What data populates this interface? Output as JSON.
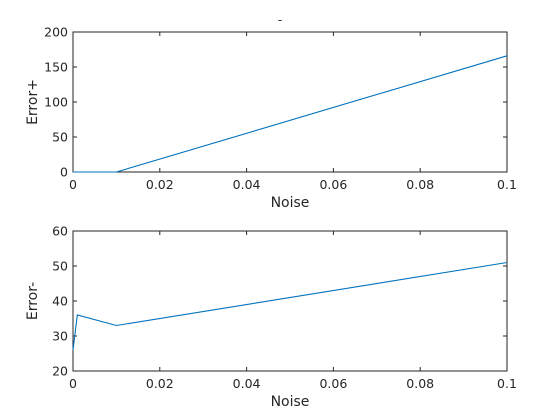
{
  "figure": {
    "title_fragment": "-"
  },
  "chart_data": [
    {
      "type": "line",
      "xlabel": "Noise",
      "ylabel": "Error+",
      "xlim": [
        0,
        0.1
      ],
      "ylim": [
        0,
        200
      ],
      "xticks": [
        0,
        0.02,
        0.04,
        0.06,
        0.08,
        0.1
      ],
      "xtick_labels": [
        "0",
        "0.02",
        "0.04",
        "0.06",
        "0.08",
        "0.1"
      ],
      "yticks": [
        0,
        50,
        100,
        150,
        200
      ],
      "ytick_labels": [
        "0",
        "50",
        "100",
        "150",
        "200"
      ],
      "grid": false,
      "color": "#0072bd",
      "series": [
        {
          "x": [
            0,
            0.001,
            0.01,
            0.1
          ],
          "y": [
            0,
            0,
            0,
            166
          ]
        }
      ]
    },
    {
      "type": "line",
      "xlabel": "Noise",
      "ylabel": "Error-",
      "xlim": [
        0,
        0.1
      ],
      "ylim": [
        20,
        60
      ],
      "xticks": [
        0,
        0.02,
        0.04,
        0.06,
        0.08,
        0.1
      ],
      "xtick_labels": [
        "0",
        "0.02",
        "0.04",
        "0.06",
        "0.08",
        "0.1"
      ],
      "yticks": [
        20,
        30,
        40,
        50,
        60
      ],
      "ytick_labels": [
        "20",
        "30",
        "40",
        "50",
        "60"
      ],
      "grid": false,
      "color": "#0072bd",
      "series": [
        {
          "x": [
            0,
            0.001,
            0.01,
            0.1
          ],
          "y": [
            26,
            36,
            33,
            51
          ]
        }
      ]
    }
  ]
}
